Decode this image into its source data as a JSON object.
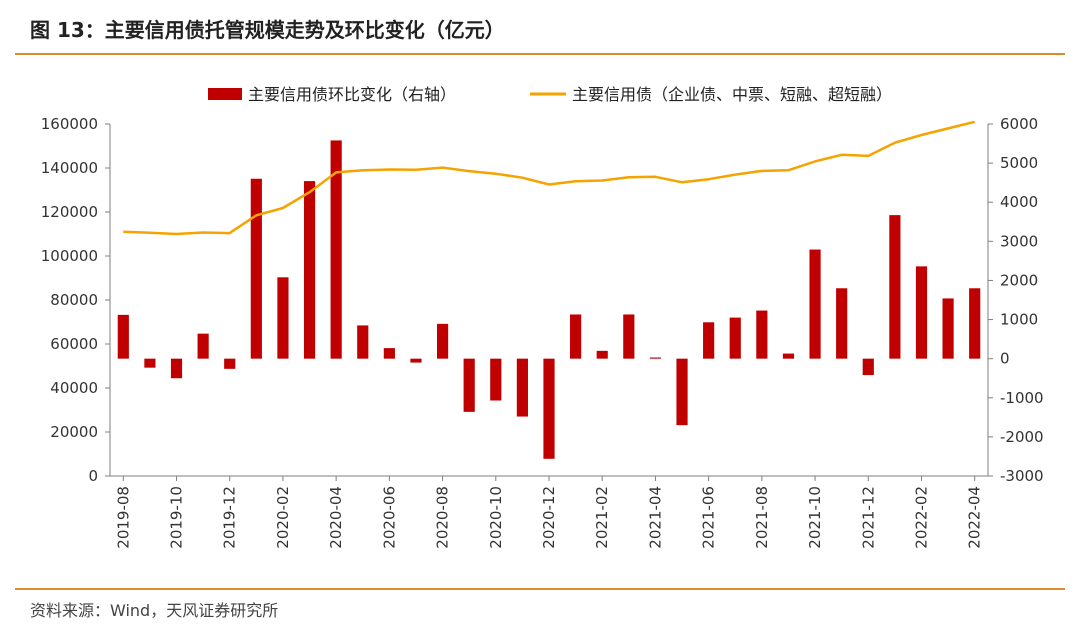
{
  "header": {
    "title": "图 13：主要信用债托管规模走势及环比变化（亿元）"
  },
  "footer": {
    "source": "资料来源：Wind，天风证券研究所"
  },
  "colors": {
    "bar": "#c00000",
    "line": "#f5a300",
    "accent_rule": "#d98e2e"
  },
  "chart_data": {
    "type": "bar+line",
    "title": "",
    "legend": [
      "主要信用债环比变化（右轴）",
      "主要信用债（企业债、中票、短融、超短融）"
    ],
    "legend_position": "top",
    "x": [
      "2019-08",
      "2019-09",
      "2019-10",
      "2019-11",
      "2019-12",
      "2020-01",
      "2020-02",
      "2020-03",
      "2020-04",
      "2020-05",
      "2020-06",
      "2020-07",
      "2020-08",
      "2020-09",
      "2020-10",
      "2020-11",
      "2020-12",
      "2021-01",
      "2021-02",
      "2021-03",
      "2021-04",
      "2021-05",
      "2021-06",
      "2021-07",
      "2021-08",
      "2021-09",
      "2021-10",
      "2021-11",
      "2021-12",
      "2022-01",
      "2022-02",
      "2022-03",
      "2022-04"
    ],
    "x_tick_labels": [
      "2019-08",
      "2019-10",
      "2019-12",
      "2020-02",
      "2020-04",
      "2020-06",
      "2020-08",
      "2020-10",
      "2020-12",
      "2021-02",
      "2021-04",
      "2021-06",
      "2021-08",
      "2021-10",
      "2021-12",
      "2022-02",
      "2022-04"
    ],
    "series": [
      {
        "name": "主要信用债环比变化（右轴）",
        "type": "bar",
        "axis": "right",
        "values": [
          1120,
          -230,
          -500,
          640,
          -260,
          4600,
          2080,
          4540,
          5580,
          850,
          270,
          -100,
          890,
          -1360,
          -1070,
          -1480,
          -2560,
          1130,
          200,
          1130,
          30,
          -1700,
          930,
          1050,
          1230,
          130,
          2790,
          1800,
          -420,
          3670,
          2360,
          1540,
          1800
        ]
      },
      {
        "name": "主要信用债（企业债、中票、短融、超短融）",
        "type": "line",
        "axis": "left",
        "values": [
          111000,
          110600,
          110000,
          110700,
          110400,
          118500,
          121800,
          129000,
          138000,
          139000,
          139300,
          139200,
          140200,
          138600,
          137400,
          135600,
          132500,
          134000,
          134300,
          135800,
          136000,
          133500,
          134900,
          137000,
          138700,
          139000,
          143000,
          146000,
          145500,
          151500,
          155000,
          158000,
          161000
        ]
      }
    ],
    "y_left": {
      "min": 0,
      "max": 160000,
      "ticks": [
        "0",
        "20000",
        "40000",
        "60000",
        "80000",
        "100000",
        "120000",
        "140000",
        "160000"
      ]
    },
    "y_right": {
      "min": -3000,
      "max": 6000,
      "ticks": [
        "-3000",
        "-2000",
        "-1000",
        "0",
        "1000",
        "2000",
        "3000",
        "4000",
        "5000",
        "6000"
      ]
    },
    "grid": false
  }
}
